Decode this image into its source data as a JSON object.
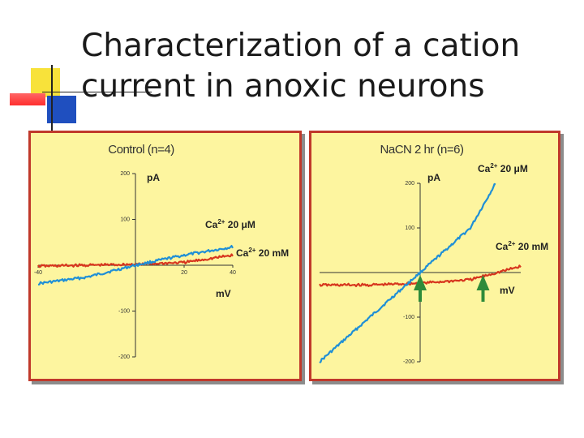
{
  "slide": {
    "title": "Characterization of a cation current in anoxic neurons"
  },
  "colors": {
    "panel_bg": "#fdf59f",
    "panel_border": "#c0392b",
    "ca_20uM_trace": "#1f8fd6",
    "ca_20mM_trace": "#d7361e",
    "arrow": "#2e8b3a"
  },
  "chart_data": [
    {
      "type": "line",
      "title": "Control (n=4)",
      "xlabel": "mV",
      "ylabel": "pA",
      "xlim": [
        -40,
        40
      ],
      "ylim": [
        -200,
        200
      ],
      "x_ticks": [
        -40,
        20,
        40
      ],
      "y_ticks": [
        200,
        100,
        -100,
        -200
      ],
      "series": [
        {
          "name": "Ca2+ 20 μM",
          "x": [
            -40,
            -20,
            0,
            20,
            40
          ],
          "y": [
            -40,
            -26,
            0,
            22,
            40
          ]
        },
        {
          "name": "Ca2+ 20 mM",
          "x": [
            -40,
            -20,
            0,
            20,
            40
          ],
          "y": [
            -2,
            0,
            2,
            6,
            22
          ]
        }
      ],
      "annotations": [
        {
          "text": "Ca2+ 20 μM"
        },
        {
          "text": "Ca2+ 20 mM"
        }
      ],
      "grid": false
    },
    {
      "type": "line",
      "title": "NaCN 2 hr (n=6)",
      "xlabel": "mV",
      "ylabel": "pA",
      "xlim": [
        -40,
        40
      ],
      "ylim": [
        -200,
        200
      ],
      "y_ticks": [
        200,
        100,
        -100,
        -200
      ],
      "series": [
        {
          "name": "Ca2+ 20 μM",
          "x": [
            -40,
            -20,
            0,
            20,
            30
          ],
          "y": [
            -200,
            -100,
            0,
            100,
            200
          ]
        },
        {
          "name": "Ca2+ 20 mM",
          "x": [
            -40,
            -20,
            0,
            20,
            40
          ],
          "y": [
            -28,
            -28,
            -24,
            -16,
            14
          ]
        }
      ],
      "annotations": [
        {
          "text": "Ca2+ 20 μM"
        },
        {
          "text": "Ca2+ 20 mM"
        }
      ],
      "markers": [
        {
          "type": "arrow",
          "x": 0
        },
        {
          "type": "arrow",
          "x": 25
        }
      ],
      "grid": false
    }
  ]
}
